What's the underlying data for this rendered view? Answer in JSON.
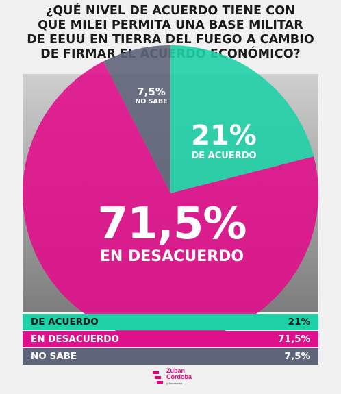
{
  "title_lines": [
    "¿QUÉ NIVEL DE ACUERDO TIENE CON",
    "QUE MILEI PERMITA UNA BASE MILITAR",
    "DE EEUU EN TIERRA DEL FUEGO A CAMBIO",
    "DE FIRMAR EL ACUERDO ECONÓMICO?"
  ],
  "colors": {
    "de_acuerdo": "#1fd1a6",
    "en_desacuerdo": "#e00f8c",
    "no_sabe": "#5e6479",
    "title": "#1a1a1a",
    "brand": "#e6007e"
  },
  "chart_data": {
    "type": "pie",
    "slices": [
      {
        "label": "DE ACUERDO",
        "value": 21,
        "display": "21%",
        "color": "#1fd1a6"
      },
      {
        "label": "EN DESACUERDO",
        "value": 71.5,
        "display": "71,5%",
        "color": "#e00f8c"
      },
      {
        "label": "NO SABE",
        "value": 7.5,
        "display": "7,5%",
        "color": "#5e6479"
      }
    ],
    "start_angle_deg": 0,
    "direction": "clockwise"
  },
  "legend": [
    {
      "label": "DE ACUERDO",
      "value": "21%",
      "color": "#1fd1a6",
      "text_color": "#1a1a1a"
    },
    {
      "label": "EN DESACUERDO",
      "value": "71,5%",
      "color": "#e00f8c",
      "text_color": "#ffffff"
    },
    {
      "label": "NO SABE",
      "value": "7,5%",
      "color": "#5e6479",
      "text_color": "#ffffff"
    }
  ],
  "logo": {
    "line1": "Zuban",
    "line2": "Córdoba",
    "line3": "y Asociados"
  }
}
